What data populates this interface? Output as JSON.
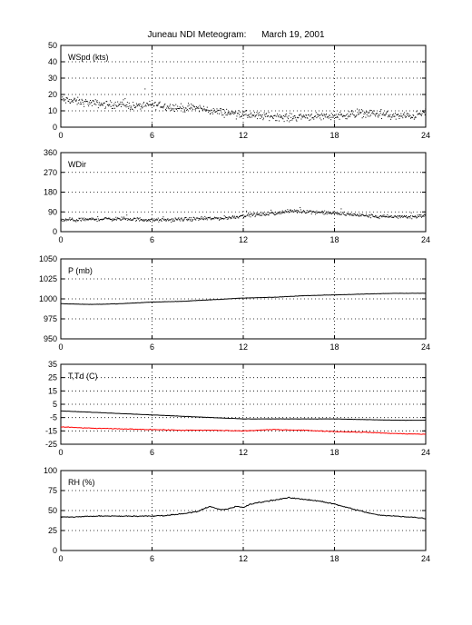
{
  "title": {
    "station": "Juneau NDI Meteogram:",
    "date": "March 19, 2001"
  },
  "colors": {
    "black": "#000000",
    "red": "#ff0000",
    "grid": "#000000"
  },
  "chart_data": [
    {
      "id": "wspd",
      "type": "scatter",
      "label": "WSpd (kts)",
      "xlim": [
        0,
        24
      ],
      "ylim": [
        0,
        50
      ],
      "xticks": [
        "0",
        "6",
        "12",
        "18",
        "24"
      ],
      "yticks": [
        "0",
        "10",
        "20",
        "30",
        "40",
        "50"
      ],
      "grid": true,
      "series": [
        {
          "color": "#000000",
          "style": "dots",
          "x": [
            0,
            1,
            2,
            3,
            4,
            5,
            6,
            7,
            8,
            9,
            10,
            11,
            12,
            13,
            14,
            15,
            16,
            17,
            18,
            19,
            20,
            21,
            22,
            23,
            24
          ],
          "y": [
            17,
            16,
            15,
            14,
            14,
            13,
            14,
            13,
            12,
            12,
            10,
            9,
            8,
            7,
            7,
            6,
            7,
            7,
            7,
            8,
            9,
            8,
            7,
            7,
            9
          ],
          "spread": 3.5
        }
      ]
    },
    {
      "id": "wdir",
      "type": "scatter",
      "label": "WDir",
      "xlim": [
        0,
        24
      ],
      "ylim": [
        0,
        360
      ],
      "xticks": [
        "0",
        "6",
        "12",
        "18",
        "24"
      ],
      "yticks": [
        "0",
        "90",
        "180",
        "270",
        "360"
      ],
      "grid": true,
      "series": [
        {
          "color": "#000000",
          "style": "dots",
          "x": [
            0,
            1,
            2,
            3,
            4,
            5,
            6,
            7,
            8,
            9,
            10,
            11,
            12,
            13,
            14,
            15,
            16,
            17,
            18,
            19,
            20,
            21,
            22,
            23,
            24
          ],
          "y": [
            55,
            55,
            58,
            60,
            60,
            58,
            55,
            55,
            58,
            60,
            62,
            65,
            75,
            80,
            85,
            95,
            95,
            90,
            85,
            80,
            75,
            70,
            70,
            70,
            75
          ],
          "spread": 12
        }
      ]
    },
    {
      "id": "pres",
      "type": "line",
      "label": "P (mb)",
      "xlim": [
        0,
        24
      ],
      "ylim": [
        950,
        1050
      ],
      "xticks": [
        "0",
        "6",
        "12",
        "18",
        "24"
      ],
      "yticks": [
        "950",
        "975",
        "1000",
        "1025",
        "1050"
      ],
      "grid": true,
      "series": [
        {
          "color": "#000000",
          "style": "line",
          "x": [
            0,
            2,
            4,
            6,
            8,
            10,
            12,
            14,
            16,
            18,
            20,
            22,
            24
          ],
          "y": [
            994,
            993,
            994,
            996,
            997,
            999,
            1001,
            1002,
            1004,
            1005,
            1006,
            1007,
            1007
          ],
          "spread": 0.3
        }
      ]
    },
    {
      "id": "temp",
      "type": "line",
      "label": "T,Td (C)",
      "xlim": [
        0,
        24
      ],
      "ylim": [
        -25,
        35
      ],
      "xticks": [
        "0",
        "6",
        "12",
        "18",
        "24"
      ],
      "yticks": [
        "-25",
        "-15",
        "-5",
        "5",
        "15",
        "25",
        "35"
      ],
      "grid": true,
      "series": [
        {
          "color": "#000000",
          "style": "line",
          "x": [
            0,
            2,
            4,
            6,
            8,
            10,
            12,
            14,
            16,
            18,
            20,
            22,
            24
          ],
          "y": [
            0,
            -1,
            -2,
            -3,
            -4,
            -5,
            -6,
            -6,
            -6,
            -6,
            -6.5,
            -7,
            -7
          ],
          "spread": 0.15
        },
        {
          "color": "#ff0000",
          "style": "line",
          "x": [
            0,
            2,
            4,
            6,
            8,
            10,
            12,
            14,
            16,
            18,
            20,
            22,
            24
          ],
          "y": [
            -12,
            -13,
            -13.5,
            -14,
            -14.5,
            -14.5,
            -15,
            -14,
            -14.5,
            -15.5,
            -16,
            -17,
            -17.5
          ],
          "spread": 0.4
        }
      ]
    },
    {
      "id": "rh",
      "type": "line",
      "label": "RH (%)",
      "xlim": [
        0,
        24
      ],
      "ylim": [
        0,
        100
      ],
      "xticks": [
        "0",
        "6",
        "12",
        "18",
        "24"
      ],
      "yticks": [
        "0",
        "25",
        "50",
        "75",
        "100"
      ],
      "grid": true,
      "series": [
        {
          "color": "#000000",
          "style": "line",
          "x": [
            0,
            1,
            2,
            3,
            4,
            5,
            6,
            7,
            8,
            9,
            9.8,
            10.5,
            11,
            11.5,
            12,
            12.5,
            13,
            14,
            15,
            16,
            17,
            18,
            19,
            20,
            21,
            22,
            23,
            24
          ],
          "y": [
            42,
            42,
            43,
            43,
            43,
            43,
            43,
            44,
            46,
            49,
            55,
            51,
            52,
            55,
            54,
            58,
            60,
            63,
            66,
            64,
            62,
            58,
            53,
            48,
            44,
            43,
            42,
            40
          ],
          "spread": 1.0
        }
      ]
    }
  ]
}
